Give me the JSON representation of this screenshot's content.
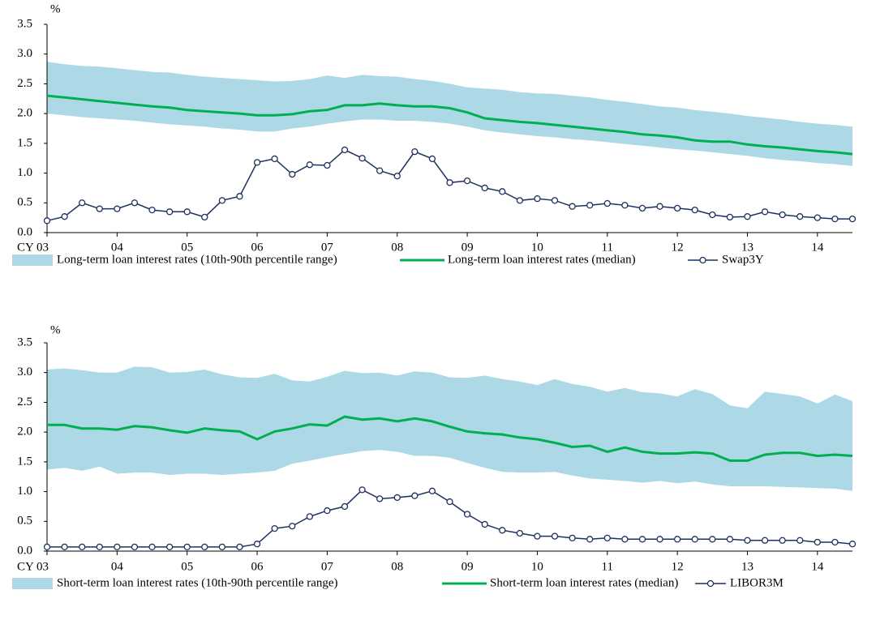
{
  "chart_data": [
    {
      "type": "line",
      "unit_label": "%",
      "categories": [
        "CY 03",
        null,
        null,
        null,
        "04",
        null,
        null,
        null,
        "05",
        null,
        null,
        null,
        "06",
        null,
        null,
        null,
        "07",
        null,
        null,
        null,
        "08",
        null,
        null,
        null,
        "09",
        null,
        null,
        null,
        "10",
        null,
        null,
        null,
        "11",
        null,
        null,
        null,
        "12",
        null,
        null,
        null,
        "13",
        null,
        null,
        null,
        "14",
        null,
        null
      ],
      "ylim": [
        0,
        3.5
      ],
      "yticks": [
        {
          "value": 0,
          "label": "0.0"
        },
        {
          "value": 0.5,
          "label": "0.5"
        },
        {
          "value": 1,
          "label": "1.0"
        },
        {
          "value": 1.5,
          "label": "1.5"
        },
        {
          "value": 2,
          "label": "2.0"
        },
        {
          "value": 2.5,
          "label": "2.5"
        },
        {
          "value": 3,
          "label": "3.0"
        },
        {
          "value": 3.5,
          "label": "3.5"
        }
      ],
      "series": [
        {
          "name": "Long-term loan interest rates (10th-90th percentile range)",
          "kind": "band",
          "color": "#add8e6",
          "high": [
            2.87,
            2.83,
            2.8,
            2.79,
            2.76,
            2.73,
            2.7,
            2.69,
            2.65,
            2.62,
            2.6,
            2.58,
            2.56,
            2.54,
            2.55,
            2.58,
            2.64,
            2.6,
            2.65,
            2.63,
            2.62,
            2.58,
            2.55,
            2.5,
            2.44,
            2.42,
            2.4,
            2.36,
            2.34,
            2.33,
            2.3,
            2.27,
            2.23,
            2.2,
            2.16,
            2.12,
            2.1,
            2.06,
            2.03,
            2.0,
            1.96,
            1.93,
            1.9,
            1.86,
            1.83,
            1.81,
            1.78
          ],
          "low": [
            2.0,
            1.97,
            1.94,
            1.92,
            1.9,
            1.88,
            1.85,
            1.82,
            1.8,
            1.78,
            1.75,
            1.73,
            1.7,
            1.7,
            1.75,
            1.78,
            1.83,
            1.87,
            1.9,
            1.9,
            1.88,
            1.88,
            1.86,
            1.83,
            1.78,
            1.72,
            1.68,
            1.65,
            1.62,
            1.6,
            1.57,
            1.55,
            1.52,
            1.49,
            1.46,
            1.43,
            1.4,
            1.38,
            1.35,
            1.32,
            1.29,
            1.25,
            1.22,
            1.2,
            1.17,
            1.15,
            1.12
          ]
        },
        {
          "name": "Long-term loan interest rates (median)",
          "kind": "line",
          "color": "#00b050",
          "values": [
            2.3,
            2.27,
            2.24,
            2.21,
            2.18,
            2.15,
            2.12,
            2.1,
            2.06,
            2.04,
            2.02,
            2.0,
            1.97,
            1.97,
            1.99,
            2.04,
            2.06,
            2.14,
            2.14,
            2.17,
            2.14,
            2.12,
            2.12,
            2.09,
            2.02,
            1.92,
            1.89,
            1.86,
            1.84,
            1.81,
            1.78,
            1.75,
            1.72,
            1.69,
            1.65,
            1.63,
            1.6,
            1.55,
            1.53,
            1.53,
            1.48,
            1.45,
            1.43,
            1.4,
            1.37,
            1.35,
            1.32
          ]
        },
        {
          "name": "Swap3Y",
          "kind": "marker-line",
          "color": "#1f2f5f",
          "values": [
            0.2,
            0.27,
            0.5,
            0.4,
            0.4,
            0.5,
            0.38,
            0.35,
            0.35,
            0.26,
            0.54,
            0.61,
            1.18,
            1.24,
            0.98,
            1.14,
            1.13,
            1.39,
            1.25,
            1.04,
            0.95,
            1.36,
            1.24,
            0.84,
            0.87,
            0.75,
            0.69,
            0.54,
            0.57,
            0.54,
            0.44,
            0.46,
            0.49,
            0.46,
            0.41,
            0.44,
            0.41,
            0.38,
            0.3,
            0.26,
            0.27,
            0.35,
            0.3,
            0.27,
            0.25,
            0.23,
            0.23
          ]
        }
      ]
    },
    {
      "type": "line",
      "unit_label": "%",
      "categories": [
        "CY 03",
        null,
        null,
        null,
        "04",
        null,
        null,
        null,
        "05",
        null,
        null,
        null,
        "06",
        null,
        null,
        null,
        "07",
        null,
        null,
        null,
        "08",
        null,
        null,
        null,
        "09",
        null,
        null,
        null,
        "10",
        null,
        null,
        null,
        "11",
        null,
        null,
        null,
        "12",
        null,
        null,
        null,
        "13",
        null,
        null,
        null,
        "14",
        null,
        null
      ],
      "ylim": [
        0,
        3.5
      ],
      "yticks": [
        {
          "value": 0,
          "label": "0.0"
        },
        {
          "value": 0.5,
          "label": "0.5"
        },
        {
          "value": 1,
          "label": "1.0"
        },
        {
          "value": 1.5,
          "label": "1.5"
        },
        {
          "value": 2,
          "label": "2.0"
        },
        {
          "value": 2.5,
          "label": "2.5"
        },
        {
          "value": 3,
          "label": "3.0"
        },
        {
          "value": 3.5,
          "label": "3.5"
        }
      ],
      "series": [
        {
          "name": "Short-term loan interest rates (10th-90th percentile range)",
          "kind": "band",
          "color": "#add8e6",
          "high": [
            3.05,
            3.07,
            3.04,
            3.0,
            3.0,
            3.1,
            3.09,
            3.0,
            3.01,
            3.05,
            2.97,
            2.92,
            2.91,
            2.98,
            2.87,
            2.85,
            2.93,
            3.03,
            2.99,
            3.0,
            2.95,
            3.02,
            3.0,
            2.92,
            2.91,
            2.95,
            2.89,
            2.85,
            2.79,
            2.89,
            2.81,
            2.76,
            2.68,
            2.74,
            2.67,
            2.65,
            2.6,
            2.72,
            2.64,
            2.45,
            2.4,
            2.68,
            2.64,
            2.6,
            2.48,
            2.63,
            2.52
          ],
          "low": [
            1.37,
            1.4,
            1.35,
            1.42,
            1.3,
            1.32,
            1.32,
            1.28,
            1.3,
            1.3,
            1.28,
            1.3,
            1.32,
            1.35,
            1.47,
            1.52,
            1.58,
            1.63,
            1.68,
            1.7,
            1.67,
            1.6,
            1.6,
            1.57,
            1.48,
            1.4,
            1.33,
            1.32,
            1.32,
            1.33,
            1.27,
            1.22,
            1.2,
            1.18,
            1.15,
            1.18,
            1.14,
            1.17,
            1.12,
            1.09,
            1.09,
            1.09,
            1.08,
            1.07,
            1.06,
            1.05,
            1.01
          ]
        },
        {
          "name": "Short-term loan interest rates (median)",
          "kind": "line",
          "color": "#00b050",
          "values": [
            2.12,
            2.12,
            2.06,
            2.06,
            2.04,
            2.1,
            2.08,
            2.03,
            1.99,
            2.06,
            2.03,
            2.01,
            1.88,
            2.01,
            2.06,
            2.13,
            2.11,
            2.26,
            2.21,
            2.23,
            2.18,
            2.23,
            2.18,
            2.09,
            2.01,
            1.98,
            1.96,
            1.91,
            1.88,
            1.82,
            1.75,
            1.77,
            1.67,
            1.74,
            1.67,
            1.64,
            1.64,
            1.66,
            1.64,
            1.52,
            1.52,
            1.62,
            1.65,
            1.65,
            1.6,
            1.62,
            1.6
          ]
        },
        {
          "name": "LIBOR3M",
          "kind": "marker-line",
          "color": "#1f2f5f",
          "values": [
            0.07,
            0.07,
            0.07,
            0.07,
            0.07,
            0.07,
            0.07,
            0.07,
            0.07,
            0.07,
            0.07,
            0.07,
            0.12,
            0.38,
            0.42,
            0.58,
            0.68,
            0.75,
            1.03,
            0.88,
            0.9,
            0.93,
            1.01,
            0.83,
            0.62,
            0.45,
            0.35,
            0.3,
            0.25,
            0.25,
            0.22,
            0.2,
            0.22,
            0.2,
            0.2,
            0.2,
            0.2,
            0.2,
            0.2,
            0.2,
            0.18,
            0.18,
            0.18,
            0.18,
            0.15,
            0.15,
            0.12
          ]
        }
      ]
    }
  ]
}
